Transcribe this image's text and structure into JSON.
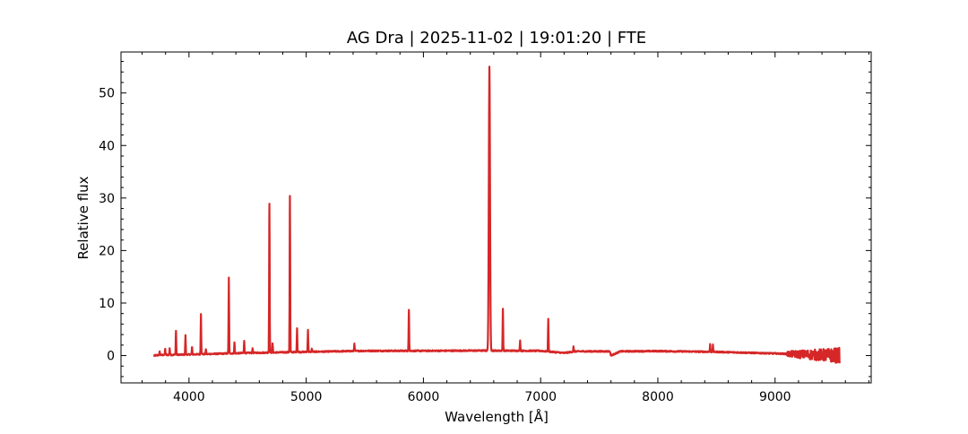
{
  "chart_data": {
    "type": "line",
    "title": "AG Dra | 2025-11-02 | 19:01:20 | FTE",
    "xlabel": "Wavelength [Å]",
    "ylabel": "Relative flux",
    "xlim": [
      3420,
      9820
    ],
    "ylim": [
      -5.2,
      57.8
    ],
    "xticks": [
      4000,
      5000,
      6000,
      7000,
      8000,
      9000
    ],
    "yticks": [
      0,
      10,
      20,
      30,
      40,
      50
    ],
    "grid": false,
    "line_color": "#d62728",
    "series": [
      {
        "continuum": [
          [
            3700,
            0.0
          ],
          [
            3750,
            0.1
          ],
          [
            4000,
            0.2
          ],
          [
            4500,
            0.5
          ],
          [
            5000,
            0.7
          ],
          [
            5500,
            0.9
          ],
          [
            6000,
            0.9
          ],
          [
            6500,
            0.95
          ],
          [
            7000,
            0.9
          ],
          [
            7200,
            0.5
          ],
          [
            7300,
            0.8
          ],
          [
            7590,
            0.8
          ],
          [
            7600,
            0.0
          ],
          [
            7680,
            0.8
          ],
          [
            8000,
            0.85
          ],
          [
            8500,
            0.7
          ],
          [
            9000,
            0.4
          ],
          [
            9550,
            0.0
          ]
        ],
        "noise_regions": [
          [
            9100,
            9550,
            1.5
          ]
        ],
        "emission_lines": [
          {
            "wavelength": 3750,
            "peak": 0.8
          },
          {
            "wavelength": 3797,
            "peak": 1.3
          },
          {
            "wavelength": 3835,
            "peak": 1.4
          },
          {
            "wavelength": 3889,
            "peak": 4.7
          },
          {
            "wavelength": 3970,
            "peak": 3.9
          },
          {
            "wavelength": 4026,
            "peak": 1.6
          },
          {
            "wavelength": 4102,
            "peak": 7.9
          },
          {
            "wavelength": 4144,
            "peak": 1.2
          },
          {
            "wavelength": 4340,
            "peak": 14.8
          },
          {
            "wavelength": 4388,
            "peak": 2.5
          },
          {
            "wavelength": 4471,
            "peak": 2.8
          },
          {
            "wavelength": 4542,
            "peak": 1.4
          },
          {
            "wavelength": 4686,
            "peak": 28.9
          },
          {
            "wavelength": 4713,
            "peak": 2.3
          },
          {
            "wavelength": 4861,
            "peak": 30.4
          },
          {
            "wavelength": 4922,
            "peak": 5.2
          },
          {
            "wavelength": 5015,
            "peak": 4.9
          },
          {
            "wavelength": 5048,
            "peak": 1.3
          },
          {
            "wavelength": 5411,
            "peak": 2.3
          },
          {
            "wavelength": 5876,
            "peak": 8.7
          },
          {
            "wavelength": 6563,
            "peak": 55.0
          },
          {
            "wavelength": 6678,
            "peak": 8.9
          },
          {
            "wavelength": 6825,
            "peak": 2.9
          },
          {
            "wavelength": 7065,
            "peak": 7.0
          },
          {
            "wavelength": 7280,
            "peak": 1.7
          },
          {
            "wavelength": 8446,
            "peak": 2.2
          },
          {
            "wavelength": 8470,
            "peak": 2.0
          }
        ]
      }
    ]
  }
}
